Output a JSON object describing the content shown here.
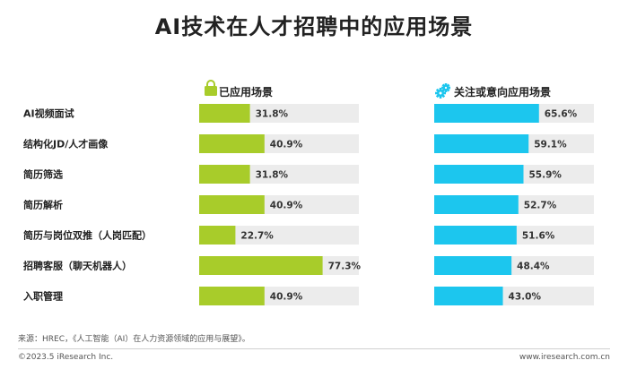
{
  "title": "AI技术在人才招聘中的应用场景",
  "chart_data": {
    "type": "bar",
    "orientation": "horizontal",
    "categories": [
      "AI视频面试",
      "结构化JD/人才画像",
      "简历筛选",
      "简历解析",
      "简历与岗位双推（人岗匹配）",
      "招聘客服（聊天机器人）",
      "入职管理"
    ],
    "series": [
      {
        "name": "已应用场景",
        "icon": "lock-icon",
        "color": "#a8cc2a",
        "values": [
          31.8,
          40.9,
          31.8,
          40.9,
          22.7,
          77.3,
          40.9
        ],
        "labels": [
          "31.8%",
          "40.9%",
          "31.8%",
          "40.9%",
          "22.7%",
          "77.3%",
          "40.9%"
        ]
      },
      {
        "name": "关注或意向应用场景",
        "icon": "gears-icon",
        "color": "#1cc6ee",
        "values": [
          65.6,
          59.1,
          55.9,
          52.7,
          51.6,
          48.4,
          43.0
        ],
        "labels": [
          "65.6%",
          "59.1%",
          "55.9%",
          "52.7%",
          "51.6%",
          "48.4%",
          "43.0%"
        ]
      }
    ],
    "xlim": [
      0,
      100
    ],
    "track_color": "#ececec",
    "grid": false
  },
  "footer": {
    "source": "来源：HREC，《人工智能（AI）在人力资源领域的应用与展望》。",
    "copyright": "©2023.5 iResearch Inc.",
    "website": "www.iresearch.com.cn"
  }
}
